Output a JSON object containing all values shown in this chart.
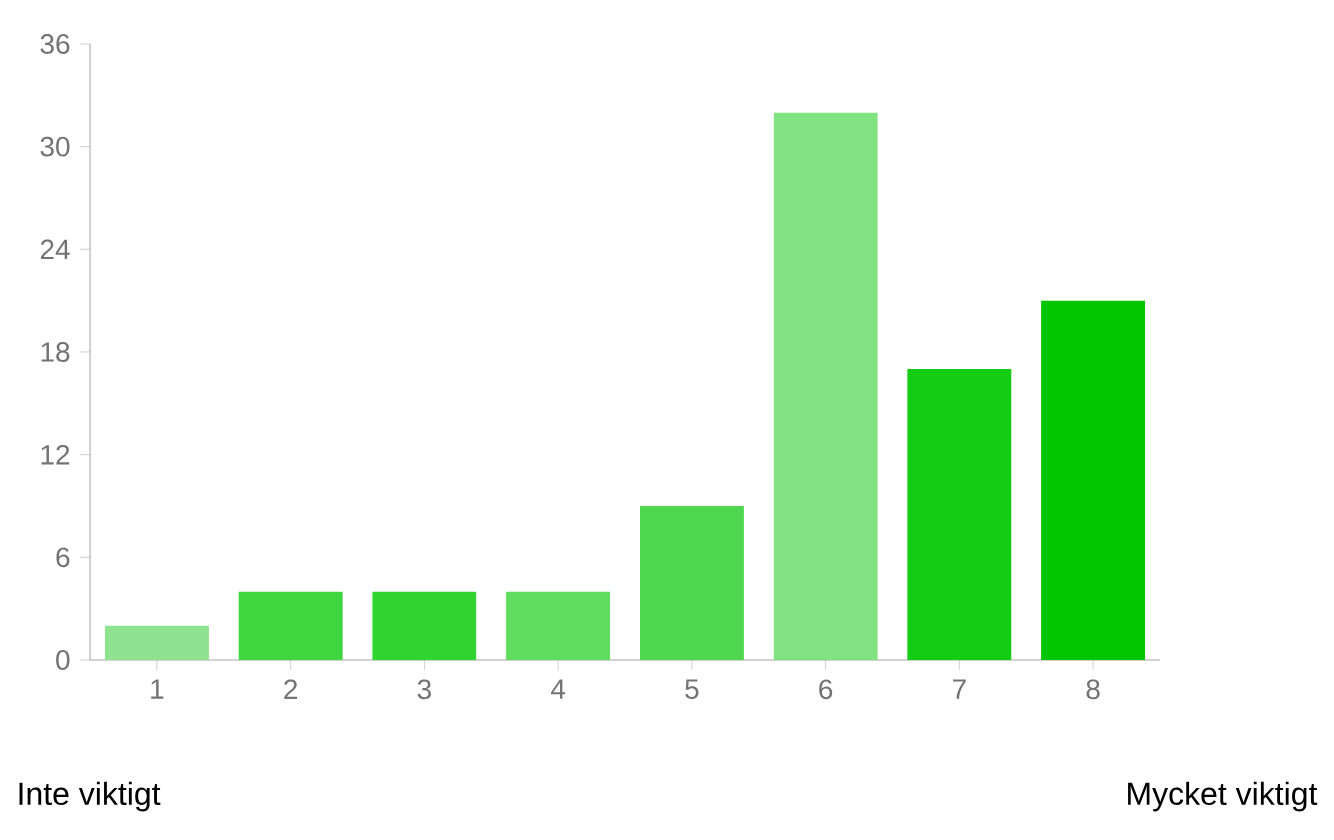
{
  "chart_data": {
    "type": "bar",
    "categories": [
      "1",
      "2",
      "3",
      "4",
      "5",
      "6",
      "7",
      "8"
    ],
    "values": [
      2,
      4,
      4,
      4,
      9,
      32,
      17,
      21
    ],
    "colors": [
      "#8fe28f",
      "#3fd63f",
      "#2fd42f",
      "#5ddc5d",
      "#4fd84f",
      "#80e280",
      "#14cc14",
      "#00c600"
    ],
    "ylim": [
      0,
      36
    ],
    "yticks": [
      0,
      6,
      12,
      18,
      24,
      30,
      36
    ],
    "annotations": [
      "Inte viktigt",
      "Mycket viktigt"
    ]
  }
}
